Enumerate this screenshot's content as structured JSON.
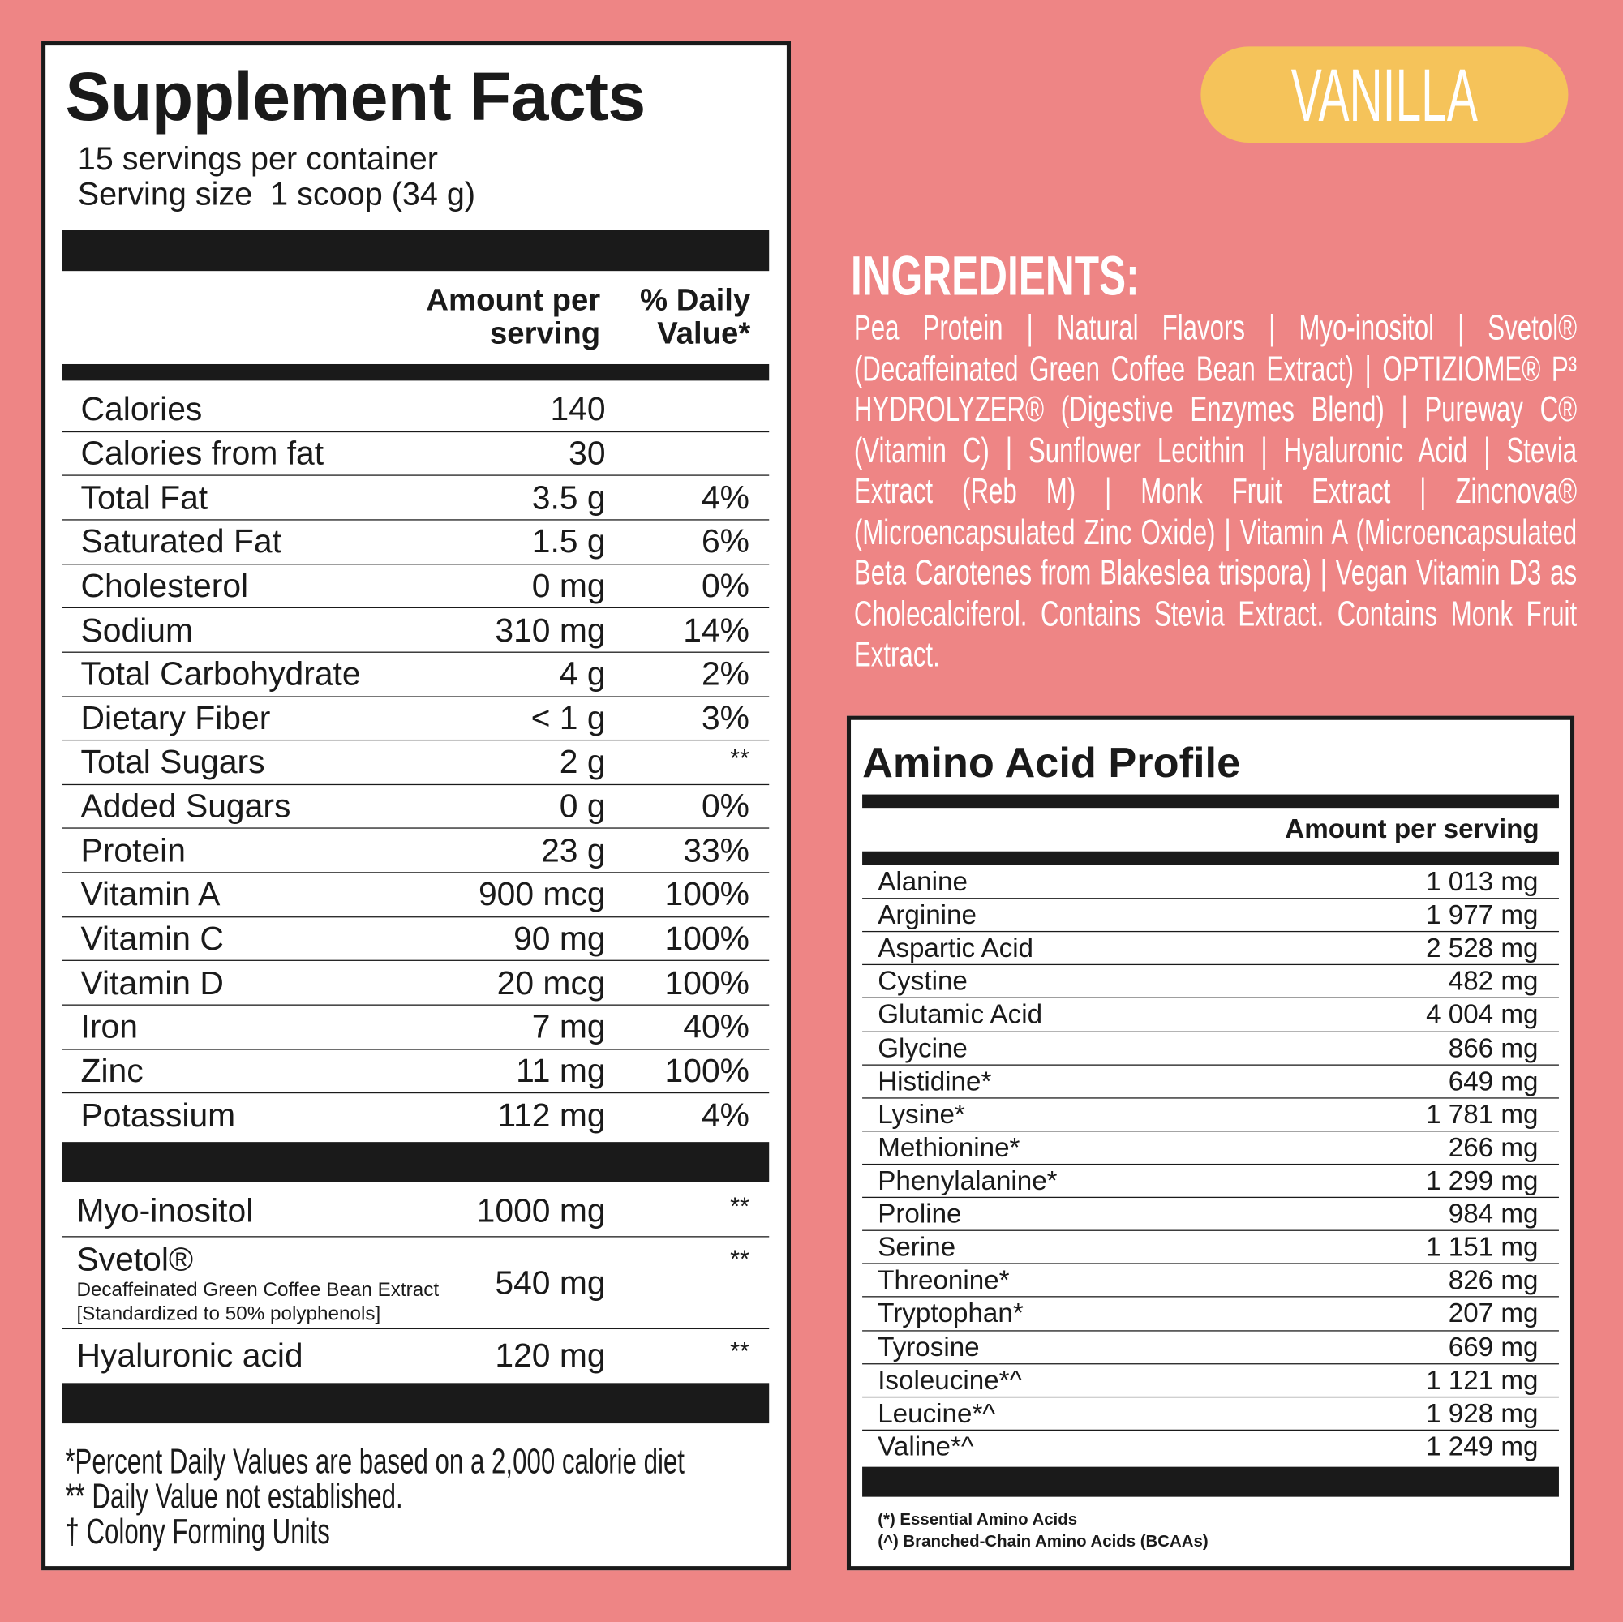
{
  "header": {
    "title": "Supplement Facts",
    "servings": "15 servings per container",
    "serving_size": "Serving size  1 scoop (34 g)"
  },
  "columns": {
    "amount": "Amount per serving",
    "daily_value": "% Daily Value*"
  },
  "nutrients": [
    [
      "Calories",
      "140",
      ""
    ],
    [
      "Calories from fat",
      "30",
      ""
    ],
    [
      "Total Fat",
      "3.5 g",
      "4%"
    ],
    [
      "Saturated Fat",
      "1.5 g",
      "6%"
    ],
    [
      "Cholesterol",
      "0 mg",
      "0%"
    ],
    [
      "Sodium",
      "310 mg",
      "14%"
    ],
    [
      "Total Carbohydrate",
      "4 g",
      "2%"
    ],
    [
      "Dietary Fiber",
      "< 1 g",
      "3%"
    ],
    [
      "Total Sugars",
      "2 g",
      "**"
    ],
    [
      "Added Sugars",
      "0 g",
      "0%"
    ],
    [
      "Protein",
      "23 g",
      "33%"
    ],
    [
      "Vitamin A",
      "900 mcg",
      "100%"
    ],
    [
      "Vitamin C",
      "90 mg",
      "100%"
    ],
    [
      "Vitamin D",
      "20 mcg",
      "100%"
    ],
    [
      "Iron",
      "7 mg",
      "40%"
    ],
    [
      "Zinc",
      "11 mg",
      "100%"
    ],
    [
      "Potassium",
      "112 mg",
      "4%"
    ]
  ],
  "specialty": [
    {
      "name": "Myo-inositol",
      "amount": "1000 mg",
      "dv": "**"
    },
    {
      "name": "Svetol®",
      "sub": [
        "Decaffeinated Green Coffee Bean Extract",
        "[Standardized to 50% polyphenols]"
      ],
      "amount": "540 mg",
      "dv": "**"
    },
    {
      "name": "Hyaluronic acid",
      "amount": "120 mg",
      "dv": "**"
    }
  ],
  "footnotes": [
    "*Percent Daily Values are based on a 2,000 calorie diet",
    "** Daily Value not established.",
    "† Colony Forming Units"
  ],
  "flavor": "VANILLA",
  "ingredients": {
    "title": "INGREDIENTS:",
    "text": "Pea Protein | Natural Flavors | Myo-inositol | Svetol® (Decaffeinated Green Coffee Bean Extract) | OPTIZIOME® P³ HYDROLYZER® (Digestive Enzymes Blend) | Pureway C® (Vitamin C) | Sunflower Lecithin | Hyaluronic Acid | Stevia Extract (Reb M) | Monk Fruit Extract | Zincnova® (Microencapsulated Zinc Oxide) | Vitamin A (Microencapsulated Beta Carotenes from Blakeslea trispora) | Vegan Vitamin D3 as Cholecalciferol. Contains Stevia Extract. Contains Monk Fruit Extract."
  },
  "amino": {
    "title": "Amino Acid Profile",
    "column": "Amount per serving",
    "rows": [
      [
        "Alanine",
        "1 013 mg"
      ],
      [
        "Arginine",
        "1 977 mg"
      ],
      [
        "Aspartic Acid",
        "2 528 mg"
      ],
      [
        "Cystine",
        "482 mg"
      ],
      [
        "Glutamic Acid",
        "4 004 mg"
      ],
      [
        "Glycine",
        "866 mg"
      ],
      [
        "Histidine*",
        "649 mg"
      ],
      [
        "Lysine*",
        "1 781 mg"
      ],
      [
        "Methionine*",
        "266 mg"
      ],
      [
        "Phenylalanine*",
        "1 299 mg"
      ],
      [
        "Proline",
        "984 mg"
      ],
      [
        "Serine",
        "1 151 mg"
      ],
      [
        "Threonine*",
        "826 mg"
      ],
      [
        "Tryptophan*",
        "207 mg"
      ],
      [
        "Tyrosine",
        "669 mg"
      ],
      [
        "Isoleucine*^",
        "1 121 mg"
      ],
      [
        "Leucine*^",
        "1 928 mg"
      ],
      [
        "Valine*^",
        "1 249 mg"
      ]
    ],
    "footnotes": [
      "(*) Essential Amino Acids",
      "(^) Branched-Chain Amino Acids (BCAAs)"
    ]
  }
}
